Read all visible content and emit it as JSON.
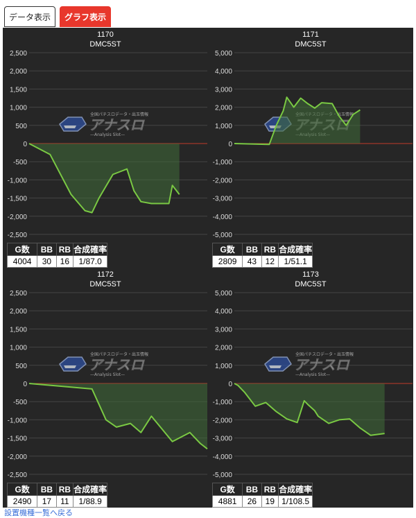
{
  "tabs": {
    "data_label": "データ表示",
    "graph_label": "グラフ表示"
  },
  "watermark": {
    "logo": "アナスロ",
    "sub": "—Analysis Slot—",
    "tagline": "全国パチスロデータ・出玉情報"
  },
  "stat_headers": {
    "games": "G数",
    "bb": "BB",
    "rb": "RB",
    "rate": "合成確率"
  },
  "footer": {
    "link": "設置機種一覧へ戻る"
  },
  "colors": {
    "line": "#7ac943",
    "fill": "#3f6b38",
    "zero": "#c0392b",
    "panel_bg": "#262626",
    "grid": "#444444",
    "active_tab": "#e8372c"
  },
  "machines": [
    {
      "number": "1170",
      "model": "DMC5ST",
      "games": "4004",
      "bb": "30",
      "rb": "16",
      "rate": "1/87.0"
    },
    {
      "number": "1171",
      "model": "DMC5ST",
      "games": "2809",
      "bb": "43",
      "rb": "12",
      "rate": "1/51.1"
    },
    {
      "number": "1172",
      "model": "DMC5ST",
      "games": "2490",
      "bb": "17",
      "rb": "11",
      "rate": "1/88.9"
    },
    {
      "number": "1173",
      "model": "DMC5ST",
      "games": "4881",
      "bb": "26",
      "rb": "19",
      "rate": "1/108.5"
    }
  ],
  "chart_data": [
    {
      "type": "area",
      "title": "1170",
      "subtitle": "DMC5ST",
      "ylim": [
        -2500,
        2500
      ],
      "yticks": [
        "2,500",
        "2,000",
        "1,500",
        "1,000",
        "500",
        "0",
        "-500",
        "-1,000",
        "-1,500",
        "-2,000",
        "-2,500"
      ],
      "x": [
        0,
        30,
        60,
        80,
        90,
        100,
        120,
        140,
        150,
        160,
        175,
        200,
        205,
        215
      ],
      "y": [
        0,
        -300,
        -1400,
        -1850,
        -1900,
        -1500,
        -850,
        -700,
        -1300,
        -1600,
        -1650,
        -1650,
        -1150,
        -1400
      ]
    },
    {
      "type": "area",
      "title": "1171",
      "subtitle": "DMC5ST",
      "ylim": [
        -5000,
        5000
      ],
      "yticks": [
        "5,000",
        "4,000",
        "3,000",
        "2,000",
        "1,000",
        "0",
        "-1,000",
        "-2,000",
        "-3,000",
        "-4,000",
        "-5,000"
      ],
      "x": [
        0,
        50,
        60,
        70,
        75,
        85,
        95,
        105,
        115,
        125,
        140,
        150,
        160,
        170,
        180
      ],
      "y": [
        0,
        -50,
        1000,
        1800,
        2550,
        2000,
        2500,
        2200,
        1950,
        2250,
        2200,
        1500,
        1000,
        1600,
        1850
      ]
    },
    {
      "type": "area",
      "title": "1172",
      "subtitle": "DMC5ST",
      "ylim": [
        -2500,
        2500
      ],
      "yticks": [
        "2,500",
        "2,000",
        "1,500",
        "1,000",
        "500",
        "0",
        "-500",
        "-1,000",
        "-1,500",
        "-2,000",
        "-2,500"
      ],
      "x": [
        0,
        30,
        60,
        90,
        110,
        125,
        145,
        160,
        175,
        190,
        205,
        230,
        245,
        255
      ],
      "y": [
        0,
        -50,
        -100,
        -150,
        -1000,
        -1200,
        -1100,
        -1350,
        -900,
        -1250,
        -1600,
        -1350,
        -1650,
        -1800
      ]
    },
    {
      "type": "area",
      "title": "1173",
      "subtitle": "DMC5ST",
      "ylim": [
        -5000,
        5000
      ],
      "yticks": [
        "5,000",
        "4,000",
        "3,000",
        "2,000",
        "1,000",
        "0",
        "-1,000",
        "-2,000",
        "-3,000",
        "-4,000",
        "-5,000"
      ],
      "x": [
        0,
        5,
        15,
        30,
        45,
        60,
        75,
        90,
        100,
        105,
        115,
        120,
        135,
        150,
        165,
        180,
        195,
        215
      ],
      "y": [
        0,
        -100,
        -500,
        -1250,
        -1050,
        -1550,
        -1950,
        -2150,
        -950,
        -1150,
        -1500,
        -1800,
        -2200,
        -2000,
        -1950,
        -2450,
        -2850,
        -2750
      ]
    }
  ]
}
